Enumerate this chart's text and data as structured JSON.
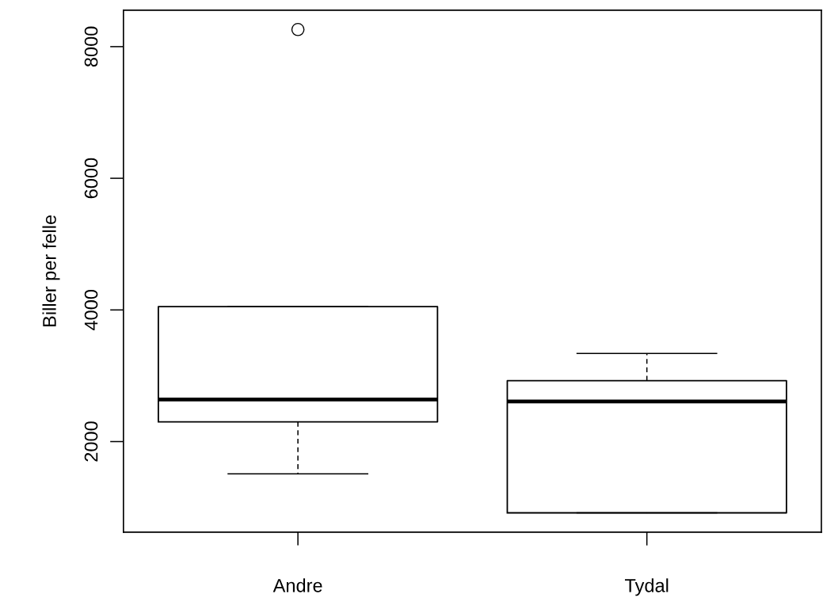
{
  "chart_data": {
    "type": "box",
    "ylabel": "Biller per felle",
    "categories": [
      "Andre",
      "Tydal"
    ],
    "boxes": [
      {
        "low": 1510,
        "q1": 2300,
        "median": 2640,
        "q3": 4050,
        "high": 4050,
        "outliers": [
          8260
        ]
      },
      {
        "low": 917,
        "q1": 917,
        "median": 2610,
        "q3": 2925,
        "high": 3340
      }
    ],
    "color": "#000000",
    "ylim": [
      623,
      8554
    ],
    "yticks": [
      2000,
      4000,
      6000,
      8000
    ],
    "grid": false,
    "line_style": "dashed"
  }
}
